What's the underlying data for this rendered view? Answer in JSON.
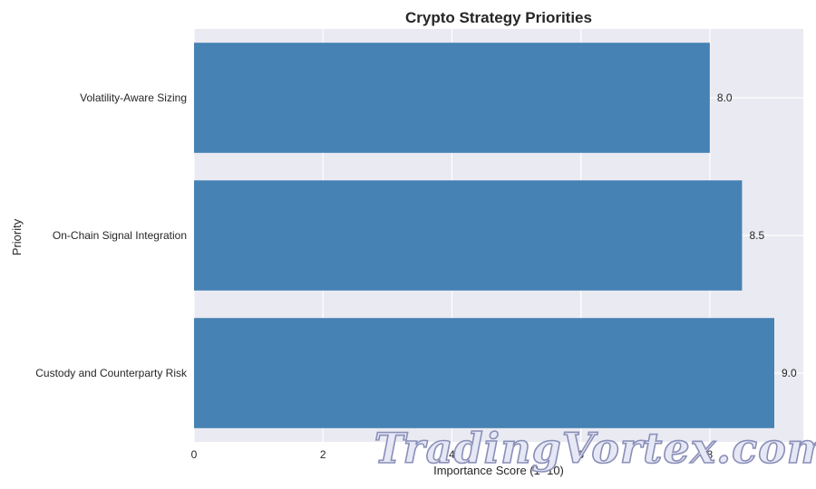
{
  "chart_data": {
    "type": "bar",
    "orientation": "horizontal",
    "title": "Crypto Strategy Priorities",
    "xlabel": "Importance Score (1–10)",
    "ylabel": "Priority",
    "categories": [
      "Volatility-Aware Sizing",
      "On-Chain Signal Integration",
      "Custody and Counterparty Risk"
    ],
    "values": [
      8.0,
      8.5,
      9.0
    ],
    "value_labels": [
      "8.0",
      "8.5",
      "9.0"
    ],
    "xlim": [
      0,
      9.45
    ],
    "xticks": [
      "0",
      "2",
      "4",
      "6",
      "8"
    ],
    "grid": true,
    "colors": {
      "bar": "#4682b4",
      "plot_background": "#eaeaf2",
      "grid": "#ffffff"
    }
  },
  "watermark": {
    "text": "TradingVortex.com"
  }
}
